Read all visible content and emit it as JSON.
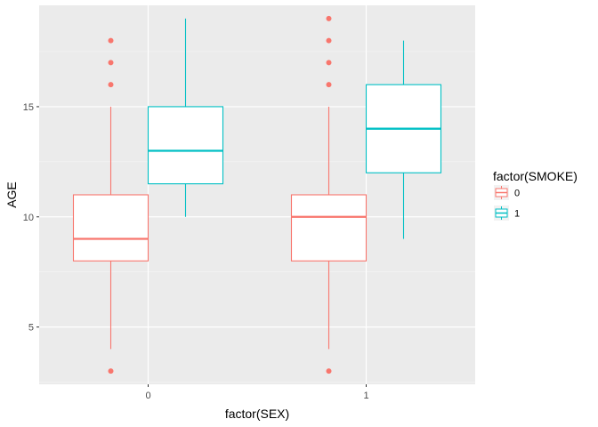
{
  "chart_data": {
    "type": "boxplot",
    "title": "",
    "xlabel": "factor(SEX)",
    "ylabel": "AGE",
    "categories": [
      "0",
      "1"
    ],
    "ylim": [
      2.4,
      19.6
    ],
    "yticks": [
      5,
      10,
      15
    ],
    "grid": true,
    "legend": {
      "title": "factor(SMOKE)",
      "position": "right",
      "entries": [
        "0",
        "1"
      ]
    },
    "series": [
      {
        "name": "0",
        "color": "#F8766D",
        "boxes": [
          {
            "category": "0",
            "lower_whisker": 4,
            "q1": 8,
            "median": 9,
            "q3": 11,
            "upper_whisker": 15,
            "outliers": [
              3,
              16,
              17,
              18
            ]
          },
          {
            "category": "1",
            "lower_whisker": 4,
            "q1": 8,
            "median": 10,
            "q3": 11,
            "upper_whisker": 15,
            "outliers": [
              3,
              16,
              17,
              18,
              19
            ]
          }
        ]
      },
      {
        "name": "1",
        "color": "#00BFC4",
        "boxes": [
          {
            "category": "0",
            "lower_whisker": 10,
            "q1": 11.5,
            "median": 13,
            "q3": 15,
            "upper_whisker": 19,
            "outliers": []
          },
          {
            "category": "1",
            "lower_whisker": 9,
            "q1": 12,
            "median": 14,
            "q3": 16,
            "upper_whisker": 18,
            "outliers": []
          }
        ]
      }
    ]
  }
}
